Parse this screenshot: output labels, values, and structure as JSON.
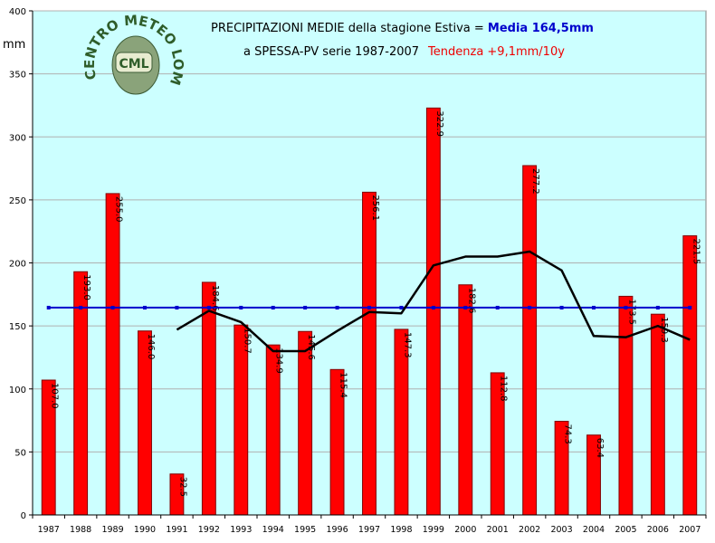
{
  "chart_data": {
    "type": "bar",
    "title_line1_prefix": "PRECIPITAZIONI MEDIE della stagione Estiva = ",
    "title_line1_highlight": "Media 164,5mm",
    "title_line2_prefix": "a SPESSA-PV serie 1987-2007",
    "title_line2_highlight": "Tendenza +9,1mm/10y",
    "ylabel": "mm",
    "ylim": [
      0,
      400
    ],
    "yticks": [
      0,
      50,
      100,
      150,
      200,
      250,
      300,
      350,
      400
    ],
    "grid": true,
    "legend": "none",
    "categories": [
      "1987",
      "1988",
      "1989",
      "1990",
      "1991",
      "1992",
      "1993",
      "1994",
      "1995",
      "1996",
      "1997",
      "1998",
      "1999",
      "2000",
      "2001",
      "2002",
      "2003",
      "2004",
      "2005",
      "2006",
      "2007"
    ],
    "series": [
      {
        "type": "bar",
        "values": [
          107.0,
          193.0,
          255.0,
          146.0,
          32.5,
          184.6,
          150.7,
          134.9,
          145.6,
          115.4,
          256.1,
          147.3,
          322.9,
          182.6,
          112.8,
          277.2,
          74.3,
          63.4,
          173.5,
          159.3,
          221.5
        ],
        "labels": [
          "107.0",
          "193.0",
          "255.0",
          "146.0",
          "32.5",
          "184.6",
          "150.7",
          "134.9",
          "145.6",
          "115.4",
          "256.1",
          "147.3",
          "322.9",
          "182.6",
          "112.8",
          "277.2",
          "74.3",
          "63.4",
          "173.5",
          "159.3",
          "221.5"
        ],
        "color": "#ff0000"
      },
      {
        "type": "line",
        "values": [
          164.5,
          164.5,
          164.5,
          164.5,
          164.5,
          164.5,
          164.5,
          164.5,
          164.5,
          164.5,
          164.5,
          164.5,
          164.5,
          164.5,
          164.5,
          164.5,
          164.5,
          164.5,
          164.5,
          164.5,
          164.5
        ],
        "color": "#0000cc"
      },
      {
        "type": "line",
        "values": [
          null,
          null,
          null,
          null,
          147,
          162,
          153,
          130,
          130,
          146,
          161,
          160,
          198,
          205,
          205,
          209,
          194,
          142,
          141,
          150,
          139
        ],
        "color": "#000000"
      }
    ],
    "colors": {
      "plot_background": "#ccffff",
      "title_normal": "#000000",
      "title_line1_highlight": "#0000cc",
      "title_line2_highlight": "#ee0000"
    }
  },
  "logo": {
    "arc_text": "CENTRO METEO LOMBARDO",
    "badge": "CML"
  }
}
